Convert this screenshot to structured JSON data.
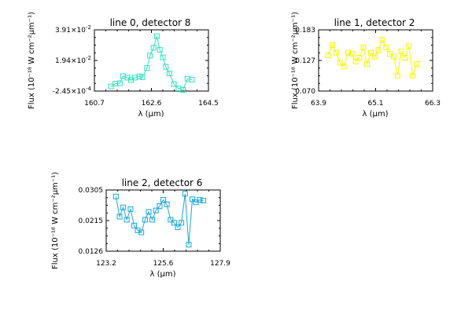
{
  "chart_data": [
    {
      "type": "line",
      "title": "line 0, detector 8",
      "xlabel": "λ (μm)",
      "ylabel": "Flux (10⁻¹⁸ W cm⁻²μm⁻¹)",
      "xlim": [
        160.7,
        164.5
      ],
      "ylim": [
        -0.000245,
        0.0391
      ],
      "xticks": [
        "160.7",
        "162.6",
        "164.5"
      ],
      "yticks": [
        {
          "mant": "3.91",
          "exp": "-2"
        },
        {
          "mant": "1.94",
          "exp": "-2"
        },
        {
          "mant": "-2.45",
          "exp": "-4"
        }
      ],
      "color": "#2fe0c0",
      "series": [
        {
          "x": [
            161.25,
            161.4,
            161.55,
            161.65,
            161.8,
            161.92,
            162.05,
            162.2,
            162.3,
            162.45,
            162.55,
            162.67,
            162.78,
            162.88,
            162.98,
            163.08,
            163.2,
            163.35,
            163.5,
            163.65,
            163.8,
            163.95
          ],
          "values": [
            0.0027,
            0.0045,
            0.0048,
            0.0094,
            0.0084,
            0.0068,
            0.0084,
            0.0092,
            0.0087,
            0.0145,
            0.0225,
            0.0276,
            0.035,
            0.0263,
            0.0214,
            0.0153,
            0.0111,
            0.0042,
            0.0015,
            0.0005,
            0.0077,
            0.007
          ]
        }
      ]
    },
    {
      "type": "line",
      "title": "line 1, detector 2",
      "xlabel": "λ (μm)",
      "ylabel": "Flux (10⁻¹⁸ W cm⁻²μm⁻¹)",
      "xlim": [
        63.9,
        66.3
      ],
      "ylim": [
        0.07,
        0.183
      ],
      "xticks": [
        "63.9",
        "65.1",
        "66.3"
      ],
      "yticks": [
        {
          "mant": "0.183",
          "exp": ""
        },
        {
          "mant": "0.127",
          "exp": ""
        },
        {
          "mant": "0.070",
          "exp": ""
        }
      ],
      "color": "#f4f400",
      "series": [
        {
          "x": [
            64.1,
            64.19,
            64.27,
            64.35,
            64.43,
            64.52,
            64.6,
            64.68,
            64.76,
            64.84,
            64.92,
            65.0,
            65.08,
            65.16,
            65.24,
            65.32,
            65.4,
            65.48,
            65.56,
            65.64,
            65.72,
            65.8,
            65.88,
            65.96
          ],
          "values": [
            0.1362,
            0.155,
            0.1409,
            0.1221,
            0.1151,
            0.1409,
            0.1385,
            0.1245,
            0.1315,
            0.1503,
            0.1197,
            0.1409,
            0.1338,
            0.1456,
            0.1644,
            0.1503,
            0.1385,
            0.1338,
            0.0986,
            0.1432,
            0.1315,
            0.1526,
            0.0986,
            0.1198
          ]
        }
      ]
    },
    {
      "type": "line",
      "title": "line 2, detector 6",
      "xlabel": "λ (μm)",
      "ylabel": "Flux (10⁻¹⁸ W cm⁻²μm⁻¹)",
      "xlim": [
        123.2,
        127.9
      ],
      "ylim": [
        0.0126,
        0.0305
      ],
      "xticks": [
        "123.2",
        "125.6",
        "127.9"
      ],
      "yticks": [
        {
          "mant": "0.0305",
          "exp": ""
        },
        {
          "mant": "0.0215",
          "exp": ""
        },
        {
          "mant": "0.0126",
          "exp": ""
        }
      ],
      "color": "#1aa6d8",
      "series": [
        {
          "x": [
            123.6,
            123.75,
            123.9,
            124.05,
            124.2,
            124.35,
            124.5,
            124.65,
            124.8,
            124.95,
            125.1,
            125.25,
            125.4,
            125.55,
            125.7,
            125.85,
            126.0,
            126.15,
            126.3,
            126.45,
            126.6,
            126.75,
            126.9,
            127.05,
            127.2
          ],
          "values": [
            0.0286,
            0.0227,
            0.0254,
            0.0218,
            0.0249,
            0.0201,
            0.0187,
            0.0181,
            0.0218,
            0.0241,
            0.0218,
            0.0245,
            0.0258,
            0.0276,
            0.0263,
            0.0218,
            0.0209,
            0.0196,
            0.0209,
            0.0294,
            0.0145,
            0.0278,
            0.0269,
            0.0276,
            0.0274
          ]
        }
      ]
    }
  ]
}
